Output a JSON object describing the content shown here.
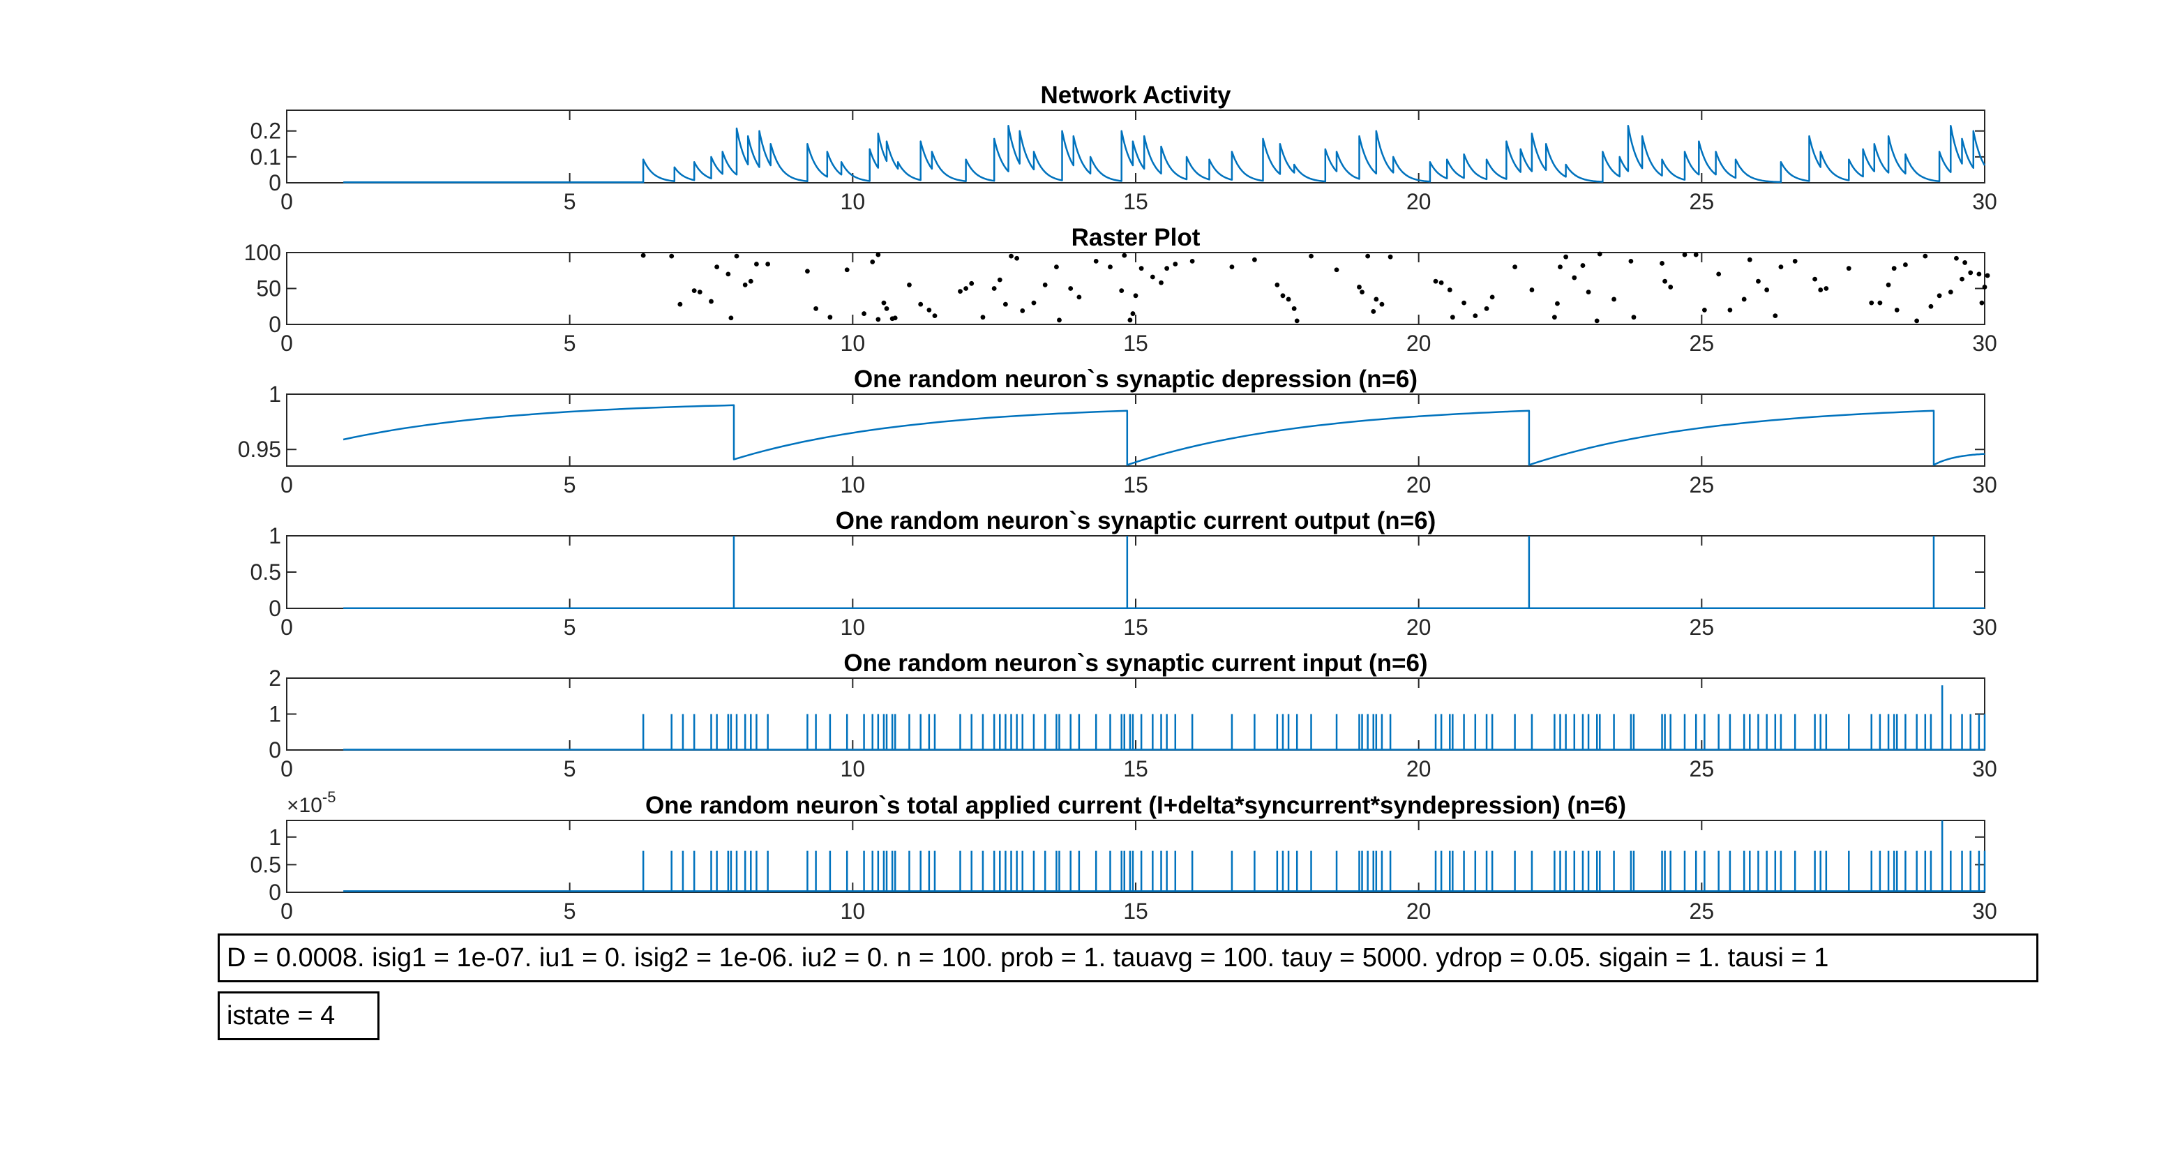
{
  "colors": {
    "line": "#0072BD",
    "axis": "#262626",
    "dot": "#000000",
    "grid_bg": "#ffffff"
  },
  "x_tick_labels": [
    "0",
    "5",
    "10",
    "15",
    "20",
    "25",
    "30"
  ],
  "chart_data": [
    {
      "type": "line",
      "title": "Network Activity",
      "xlabel": "",
      "ylabel": "",
      "xlim": [
        0,
        30
      ],
      "ylim": [
        0,
        0.28
      ],
      "y_tick_values": [
        0,
        0.1,
        0.2
      ],
      "y_tick_labels": [
        "0",
        "0.1",
        "0.2"
      ],
      "series": [
        {
          "kind": "decay_bursts",
          "baseline": 0.002,
          "x_start": 1,
          "x_end": 30,
          "tau": 0.18,
          "events": [
            [
              6.3,
              0.09
            ],
            [
              6.85,
              0.06
            ],
            [
              7.2,
              0.08
            ],
            [
              7.5,
              0.1
            ],
            [
              7.7,
              0.12
            ],
            [
              7.95,
              0.21
            ],
            [
              8.15,
              0.18
            ],
            [
              8.35,
              0.2
            ],
            [
              8.55,
              0.15
            ],
            [
              9.2,
              0.15
            ],
            [
              9.55,
              0.12
            ],
            [
              9.8,
              0.08
            ],
            [
              10.3,
              0.13
            ],
            [
              10.45,
              0.19
            ],
            [
              10.6,
              0.16
            ],
            [
              10.8,
              0.08
            ],
            [
              11.2,
              0.16
            ],
            [
              11.4,
              0.12
            ],
            [
              12.0,
              0.09
            ],
            [
              12.5,
              0.17
            ],
            [
              12.75,
              0.22
            ],
            [
              12.95,
              0.2
            ],
            [
              13.2,
              0.12
            ],
            [
              13.7,
              0.2
            ],
            [
              13.9,
              0.18
            ],
            [
              14.2,
              0.1
            ],
            [
              14.75,
              0.2
            ],
            [
              14.95,
              0.16
            ],
            [
              15.15,
              0.18
            ],
            [
              15.45,
              0.14
            ],
            [
              15.9,
              0.1
            ],
            [
              16.3,
              0.09
            ],
            [
              16.7,
              0.12
            ],
            [
              17.25,
              0.17
            ],
            [
              17.55,
              0.15
            ],
            [
              17.8,
              0.07
            ],
            [
              18.35,
              0.13
            ],
            [
              18.55,
              0.12
            ],
            [
              18.95,
              0.18
            ],
            [
              19.25,
              0.2
            ],
            [
              19.55,
              0.1
            ],
            [
              20.2,
              0.08
            ],
            [
              20.5,
              0.09
            ],
            [
              20.8,
              0.11
            ],
            [
              21.2,
              0.09
            ],
            [
              21.55,
              0.16
            ],
            [
              21.8,
              0.13
            ],
            [
              22.0,
              0.19
            ],
            [
              22.25,
              0.15
            ],
            [
              22.6,
              0.07
            ],
            [
              23.25,
              0.12
            ],
            [
              23.55,
              0.1
            ],
            [
              23.7,
              0.22
            ],
            [
              23.95,
              0.18
            ],
            [
              24.3,
              0.09
            ],
            [
              24.7,
              0.12
            ],
            [
              24.95,
              0.16
            ],
            [
              25.25,
              0.12
            ],
            [
              25.6,
              0.09
            ],
            [
              26.4,
              0.08
            ],
            [
              26.9,
              0.18
            ],
            [
              27.1,
              0.12
            ],
            [
              27.6,
              0.09
            ],
            [
              27.85,
              0.13
            ],
            [
              28.05,
              0.15
            ],
            [
              28.3,
              0.18
            ],
            [
              28.6,
              0.11
            ],
            [
              29.2,
              0.12
            ],
            [
              29.4,
              0.22
            ],
            [
              29.6,
              0.17
            ],
            [
              29.8,
              0.2
            ]
          ]
        }
      ]
    },
    {
      "type": "scatter",
      "title": "Raster Plot",
      "xlabel": "",
      "ylabel": "",
      "xlim": [
        0,
        30
      ],
      "ylim": [
        0,
        100
      ],
      "y_tick_values": [
        0,
        50,
        100
      ],
      "y_tick_labels": [
        "0",
        "50",
        "100"
      ],
      "points": [
        [
          6.3,
          96
        ],
        [
          6.8,
          95
        ],
        [
          6.95,
          28
        ],
        [
          7.2,
          47
        ],
        [
          7.3,
          45
        ],
        [
          7.5,
          32
        ],
        [
          7.6,
          80
        ],
        [
          7.8,
          70
        ],
        [
          7.85,
          9
        ],
        [
          7.95,
          95
        ],
        [
          8.1,
          55
        ],
        [
          8.2,
          60
        ],
        [
          8.3,
          84
        ],
        [
          8.5,
          84
        ],
        [
          9.2,
          74
        ],
        [
          9.35,
          22
        ],
        [
          9.6,
          10
        ],
        [
          9.9,
          76
        ],
        [
          10.2,
          15
        ],
        [
          10.35,
          87
        ],
        [
          10.45,
          7
        ],
        [
          10.45,
          97
        ],
        [
          10.55,
          30
        ],
        [
          10.6,
          22
        ],
        [
          10.7,
          8
        ],
        [
          10.75,
          9
        ],
        [
          11.0,
          55
        ],
        [
          11.2,
          28
        ],
        [
          11.35,
          20
        ],
        [
          11.45,
          12
        ],
        [
          11.9,
          46
        ],
        [
          12.0,
          50
        ],
        [
          12.1,
          57
        ],
        [
          12.3,
          10
        ],
        [
          12.5,
          50
        ],
        [
          12.6,
          62
        ],
        [
          12.7,
          28
        ],
        [
          12.8,
          95
        ],
        [
          12.9,
          92
        ],
        [
          13.0,
          19
        ],
        [
          13.2,
          30
        ],
        [
          13.4,
          55
        ],
        [
          13.6,
          80
        ],
        [
          13.65,
          6
        ],
        [
          13.85,
          50
        ],
        [
          14.0,
          38
        ],
        [
          14.3,
          88
        ],
        [
          14.55,
          80
        ],
        [
          14.75,
          47
        ],
        [
          14.8,
          96
        ],
        [
          14.9,
          6
        ],
        [
          14.95,
          15
        ],
        [
          15.0,
          40
        ],
        [
          15.1,
          78
        ],
        [
          15.3,
          66
        ],
        [
          15.45,
          58
        ],
        [
          15.55,
          78
        ],
        [
          15.7,
          84
        ],
        [
          16.0,
          88
        ],
        [
          16.7,
          80
        ],
        [
          17.1,
          90
        ],
        [
          17.5,
          55
        ],
        [
          17.6,
          40
        ],
        [
          17.7,
          35
        ],
        [
          17.8,
          22
        ],
        [
          17.85,
          5
        ],
        [
          18.1,
          95
        ],
        [
          18.55,
          76
        ],
        [
          18.95,
          52
        ],
        [
          19.0,
          45
        ],
        [
          19.1,
          95
        ],
        [
          19.2,
          18
        ],
        [
          19.25,
          35
        ],
        [
          19.35,
          28
        ],
        [
          19.5,
          94
        ],
        [
          20.3,
          60
        ],
        [
          20.4,
          58
        ],
        [
          20.55,
          48
        ],
        [
          20.6,
          10
        ],
        [
          20.8,
          30
        ],
        [
          21.0,
          12
        ],
        [
          21.2,
          22
        ],
        [
          21.3,
          38
        ],
        [
          21.7,
          80
        ],
        [
          22.0,
          48
        ],
        [
          22.4,
          10
        ],
        [
          22.45,
          29
        ],
        [
          22.5,
          80
        ],
        [
          22.6,
          94
        ],
        [
          22.75,
          65
        ],
        [
          22.9,
          82
        ],
        [
          23.0,
          45
        ],
        [
          23.15,
          5
        ],
        [
          23.2,
          98
        ],
        [
          23.45,
          35
        ],
        [
          23.75,
          88
        ],
        [
          23.8,
          10
        ],
        [
          24.3,
          85
        ],
        [
          24.35,
          60
        ],
        [
          24.45,
          52
        ],
        [
          24.7,
          97
        ],
        [
          24.9,
          97
        ],
        [
          25.05,
          20
        ],
        [
          25.3,
          70
        ],
        [
          25.5,
          20
        ],
        [
          25.75,
          35
        ],
        [
          25.85,
          90
        ],
        [
          26.0,
          60
        ],
        [
          26.15,
          48
        ],
        [
          26.3,
          12
        ],
        [
          26.4,
          80
        ],
        [
          26.65,
          88
        ],
        [
          27.0,
          63
        ],
        [
          27.1,
          48
        ],
        [
          27.2,
          50
        ],
        [
          27.6,
          78
        ],
        [
          28.0,
          30
        ],
        [
          28.15,
          30
        ],
        [
          28.3,
          55
        ],
        [
          28.4,
          78
        ],
        [
          28.45,
          20
        ],
        [
          28.6,
          83
        ],
        [
          28.8,
          5
        ],
        [
          28.95,
          95
        ],
        [
          29.05,
          25
        ],
        [
          29.2,
          40
        ],
        [
          29.4,
          45
        ],
        [
          29.5,
          92
        ],
        [
          29.6,
          63
        ],
        [
          29.65,
          86
        ],
        [
          29.75,
          72
        ],
        [
          29.9,
          70
        ],
        [
          29.95,
          30
        ],
        [
          30.0,
          52
        ],
        [
          30.05,
          68
        ]
      ]
    },
    {
      "type": "line",
      "title": "One random neuron`s synaptic depression (n=6)",
      "xlabel": "",
      "ylabel": "",
      "xlim": [
        0,
        30
      ],
      "ylim": [
        0.935,
        1
      ],
      "y_tick_values": [
        0.95,
        1
      ],
      "y_tick_labels": [
        "0.95",
        "1"
      ],
      "series": [
        {
          "kind": "recovery",
          "segments": [
            {
              "x0": 1.0,
              "x1": 7.9,
              "y0": 0.959,
              "y1": 0.99
            },
            {
              "x0": 7.9,
              "x1": 14.85,
              "y0": 0.941,
              "y1": 0.985
            },
            {
              "x0": 14.85,
              "x1": 21.95,
              "y0": 0.936,
              "y1": 0.985
            },
            {
              "x0": 21.95,
              "x1": 29.1,
              "y0": 0.936,
              "y1": 0.985
            },
            {
              "x0": 29.1,
              "x1": 30.0,
              "y0": 0.936,
              "y1": 0.946
            }
          ]
        }
      ]
    },
    {
      "type": "line",
      "title": "One random neuron`s synaptic current output (n=6)",
      "xlabel": "",
      "ylabel": "",
      "xlim": [
        0,
        30
      ],
      "ylim": [
        0,
        1
      ],
      "y_tick_values": [
        0,
        0.5,
        1
      ],
      "y_tick_labels": [
        "0",
        "0.5",
        "1"
      ],
      "series": [
        {
          "kind": "spikes",
          "baseline": 0.002,
          "x_start": 1,
          "x_end": 30,
          "spikes": [
            [
              7.9,
              1.0
            ],
            [
              14.85,
              1.0
            ],
            [
              21.95,
              1.0
            ],
            [
              29.1,
              1.0
            ]
          ]
        }
      ]
    },
    {
      "type": "line",
      "title": "One random neuron`s synaptic current input (n=6)",
      "xlabel": "",
      "ylabel": "",
      "xlim": [
        0,
        30
      ],
      "ylim": [
        0,
        2
      ],
      "y_tick_values": [
        0,
        1,
        2
      ],
      "y_tick_labels": [
        "0",
        "1",
        "2"
      ],
      "series": [
        {
          "kind": "spikes",
          "baseline": 0.01,
          "x_start": 1,
          "x_end": 30,
          "spike_times": [
            6.3,
            6.8,
            7.0,
            7.2,
            7.5,
            7.6,
            7.8,
            7.85,
            7.95,
            8.1,
            8.2,
            8.3,
            8.5,
            9.2,
            9.35,
            9.6,
            9.9,
            10.2,
            10.35,
            10.45,
            10.55,
            10.6,
            10.7,
            10.75,
            11.0,
            11.2,
            11.35,
            11.45,
            11.9,
            12.1,
            12.3,
            12.5,
            12.6,
            12.7,
            12.8,
            12.9,
            13.0,
            13.2,
            13.4,
            13.6,
            13.65,
            13.85,
            14.0,
            14.3,
            14.55,
            14.75,
            14.8,
            14.9,
            14.95,
            15.1,
            15.3,
            15.45,
            15.55,
            15.7,
            16.0,
            16.7,
            17.1,
            17.5,
            17.6,
            17.7,
            17.85,
            18.1,
            18.55,
            18.95,
            19.0,
            19.1,
            19.2,
            19.25,
            19.35,
            19.5,
            20.3,
            20.4,
            20.55,
            20.6,
            20.8,
            21.0,
            21.2,
            21.3,
            21.7,
            22.0,
            22.4,
            22.5,
            22.6,
            22.75,
            22.9,
            23.0,
            23.15,
            23.2,
            23.45,
            23.75,
            23.8,
            24.3,
            24.35,
            24.45,
            24.7,
            24.9,
            25.05,
            25.3,
            25.5,
            25.75,
            25.85,
            26.0,
            26.15,
            26.3,
            26.4,
            26.65,
            27.0,
            27.1,
            27.2,
            27.6,
            28.0,
            28.15,
            28.3,
            28.4,
            28.45,
            28.6,
            28.8,
            28.95,
            29.05,
            29.4,
            29.6,
            29.75,
            29.9,
            30.0
          ],
          "spike_value": 1.0,
          "extra_spikes": [
            [
              29.25,
              1.8
            ]
          ]
        }
      ]
    },
    {
      "type": "line",
      "title": "One random neuron`s total applied current (I+delta*syncurrent*syndepression) (n=6)",
      "xlabel": "",
      "ylabel": "",
      "exponent_label": "×10",
      "exponent_power": "-5",
      "xlim": [
        0,
        30
      ],
      "ylim": [
        0,
        1.3
      ],
      "y_tick_values": [
        0,
        0.5,
        1
      ],
      "y_tick_labels": [
        "0",
        "0.5",
        "1"
      ],
      "series": [
        {
          "kind": "spikes",
          "baseline": 0.02,
          "x_start": 1,
          "x_end": 30,
          "same_times_as": 4,
          "spike_value": 0.75,
          "extra_spikes": [
            [
              29.25,
              1.3
            ]
          ]
        }
      ]
    }
  ],
  "params_text": "D = 0.0008. isig1 = 1e-07. iu1 = 0. isig2 = 1e-06. iu2 = 0. n = 100. prob = 1. tauavg = 100. tauy = 5000. ydrop = 0.05. sigain = 1. tausi = 1",
  "istate_text": "istate = 4"
}
